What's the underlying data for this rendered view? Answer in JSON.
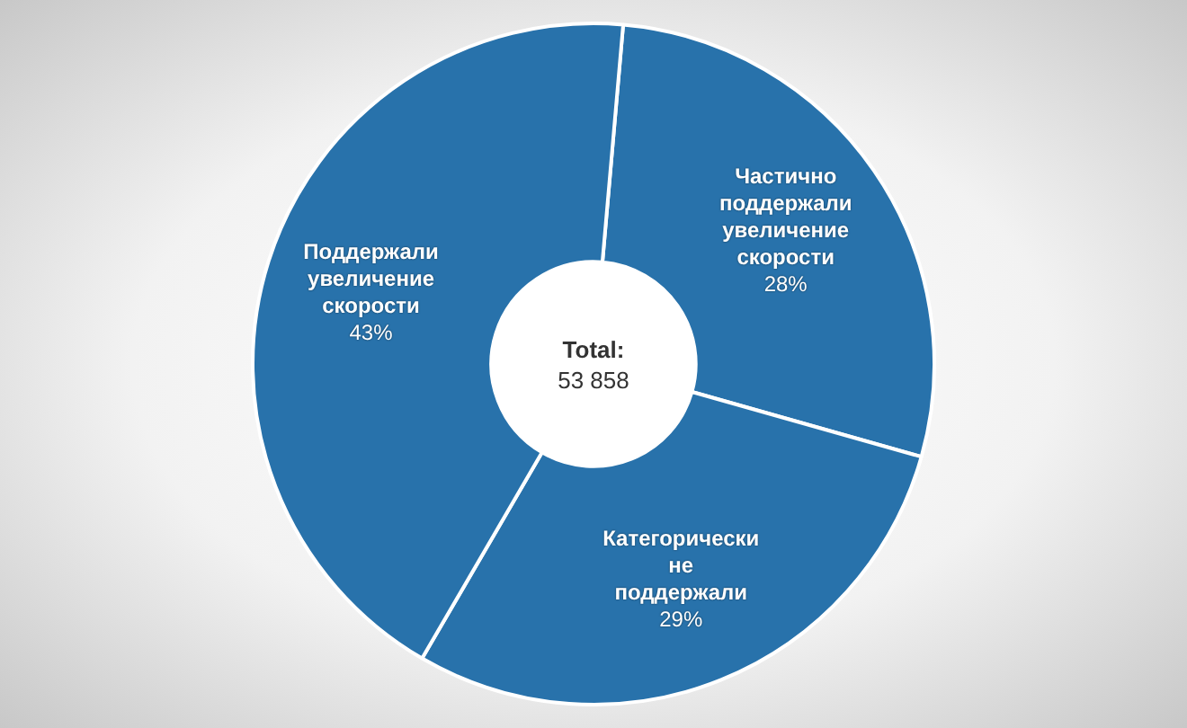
{
  "chart_data": {
    "type": "donut",
    "categories": [
      "Частично поддержали увеличение скорости",
      "Категорически не поддержали",
      "Поддержали увеличение скорости"
    ],
    "values": [
      28,
      29,
      43
    ],
    "colors": [
      "#2872ab",
      "#2872ab",
      "#2872ab"
    ],
    "value_labels": [
      "28%",
      "29%",
      "43%"
    ],
    "annotations": [
      "Total:",
      "53 858"
    ],
    "legend": false
  }
}
